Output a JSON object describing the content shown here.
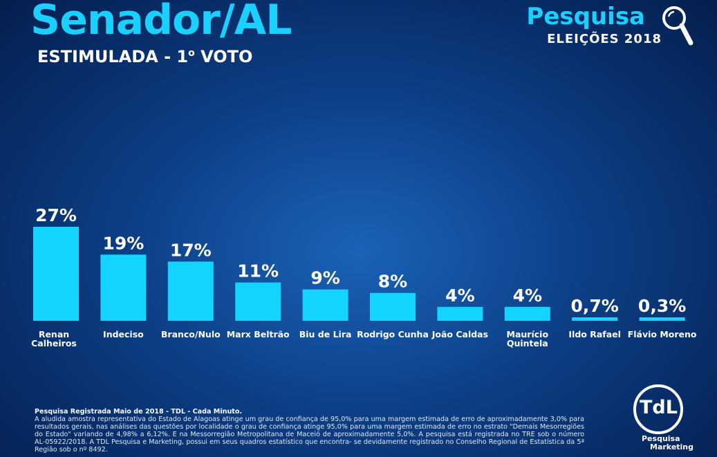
{
  "header": {
    "title": "Senador/AL",
    "subtitle_main": "ESTIMULADA - 1",
    "subtitle_sup": "o",
    "subtitle_end": " VOTO"
  },
  "brand": {
    "main": "Pesquisa",
    "sub": "ELEIÇÕES 2018",
    "icon": "magnifier-icon"
  },
  "chart_data": {
    "type": "bar",
    "categories": [
      "Renan\nCalheiros",
      "Indeciso",
      "Branco/Nulo",
      "Marx Beltrão",
      "Biu de Lira",
      "Rodrigo Cunha",
      "João Caldas",
      "Maurício\nQuintela",
      "Ildo Rafael",
      "Flávio Moreno"
    ],
    "values": [
      27,
      19,
      17,
      11,
      9,
      8,
      4,
      4,
      0.7,
      0.3
    ],
    "labels": [
      "27%",
      "19%",
      "17%",
      "11%",
      "9%",
      "8%",
      "4%",
      "4%",
      "0,7%",
      "0,3%"
    ],
    "ylim": [
      0,
      27
    ],
    "bar_color": "#14d4ff",
    "grid": false
  },
  "footnote": {
    "title": "Pesquisa Registrada Maio de 2018 - TDL - Cada Minuto.",
    "body": "A aludida amostra representativa do Estado de Alagoas atinge um grau de confiança de 95,0% para uma margem estimada de erro de aproximadamente 3,0% para resultados gerais, nas análises das questões por localidade o grau de confiança atinge 95,0% para uma margem estimada de erro no estrato \"Demais Mesorregiões do Estado\" variando de 4,98% a 6,12%. E na Messorregião Metropolitana de Maceió de aproximadamente 5,0%. A pesquisa está registrada no TRE sob o número AL-05922/2018. A TDL Pesquisa e Marketing, possui em seus quadros estatístico que encontra- se devidamente registrado no Conselho Regional de Estatística da 5ª Região sob o nº 8492."
  },
  "logo": {
    "text": "TdL",
    "tag1": "Pesquisa",
    "tag2": "Marketing"
  }
}
